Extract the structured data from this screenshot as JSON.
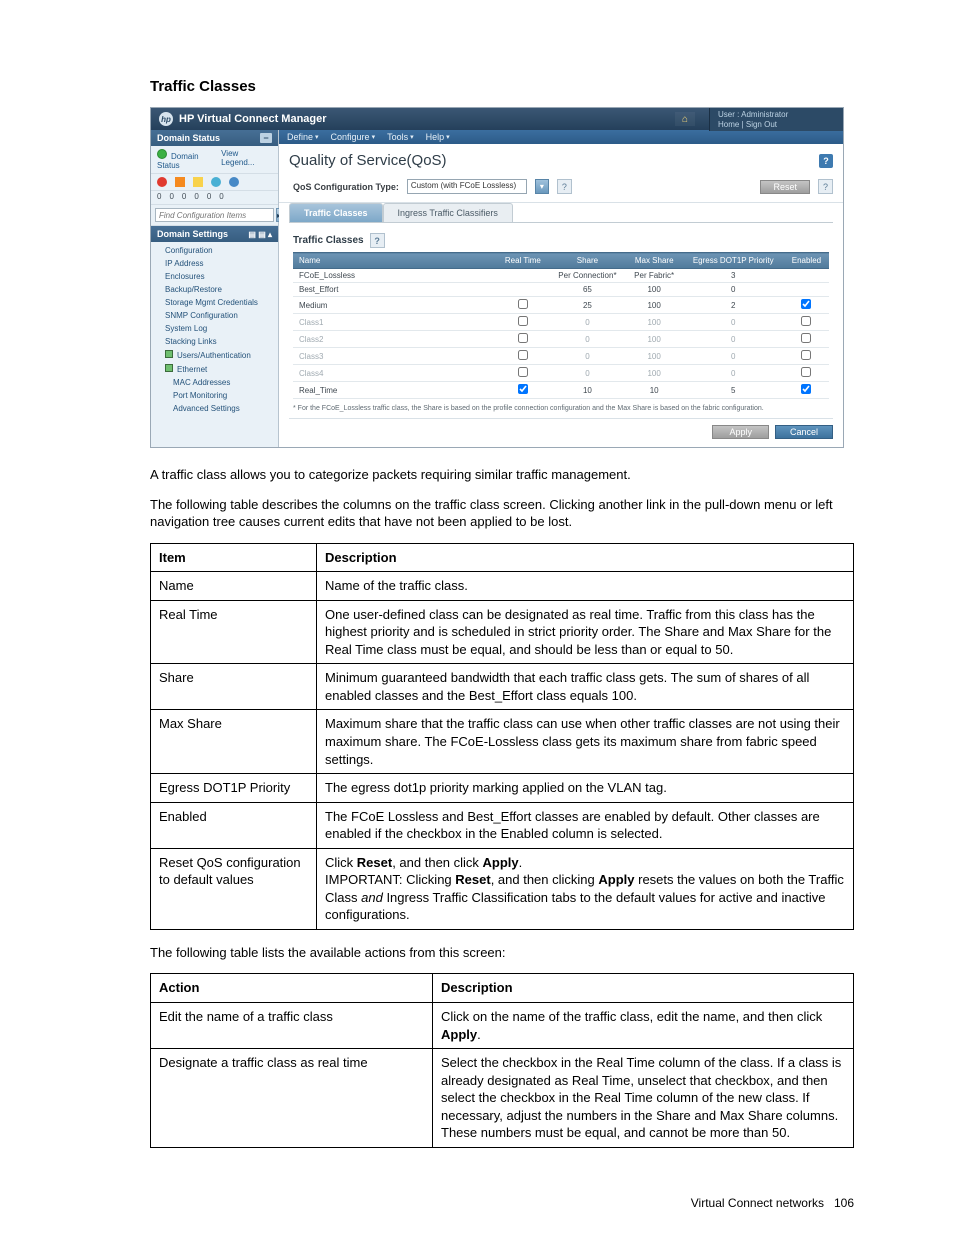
{
  "section_title": "Traffic Classes",
  "screenshot": {
    "titlebar": "HP Virtual Connect Manager",
    "userbox_line1": "User : Administrator",
    "userbox_line2": "Home | Sign Out",
    "menubar": [
      "Define",
      "Configure",
      "Tools",
      "Help"
    ],
    "left": {
      "domain_status_hdr": "Domain Status",
      "domain_status_link": "Domain Status",
      "view_legend": "View Legend...",
      "counts": [
        "0",
        "0",
        "0",
        "0",
        "0",
        "0"
      ],
      "search_placeholder": "Find Configuration Items",
      "domain_settings_hdr": "Domain Settings",
      "tree": [
        "Configuration",
        "IP Address",
        "Enclosures",
        "Backup/Restore",
        "Storage Mgmt Credentials",
        "SNMP Configuration",
        "System Log",
        "Stacking Links",
        "Users/Authentication",
        "Ethernet",
        "MAC Addresses",
        "Port Monitoring",
        "Advanced Settings"
      ]
    },
    "content": {
      "title": "Quality of Service(QoS)",
      "config_label": "QoS Configuration Type:",
      "config_value": "Custom (with FCoE Lossless)",
      "reset_label": "Reset",
      "tabs": [
        "Traffic Classes",
        "Ingress Traffic Classifiers"
      ],
      "tc_header": "Traffic Classes",
      "columns": [
        "Name",
        "Real Time",
        "Share",
        "Max Share",
        "Egress DOT1P Priority",
        "Enabled"
      ],
      "rows": [
        {
          "name": "FCoE_Lossless",
          "rt": "",
          "share": "Per Connection*",
          "max": "Per Fabric*",
          "pri": "3",
          "enabled": "locked",
          "dim": false
        },
        {
          "name": "Best_Effort",
          "rt": "",
          "share": "65",
          "max": "100",
          "pri": "0",
          "enabled": "locked",
          "dim": false
        },
        {
          "name": "Medium",
          "rt": "unchecked",
          "share": "25",
          "max": "100",
          "pri": "2",
          "enabled": "checked",
          "dim": false
        },
        {
          "name": "Class1",
          "rt": "unchecked",
          "share": "0",
          "max": "100",
          "pri": "0",
          "enabled": "unchecked",
          "dim": true
        },
        {
          "name": "Class2",
          "rt": "unchecked",
          "share": "0",
          "max": "100",
          "pri": "0",
          "enabled": "unchecked",
          "dim": true
        },
        {
          "name": "Class3",
          "rt": "unchecked",
          "share": "0",
          "max": "100",
          "pri": "0",
          "enabled": "unchecked",
          "dim": true
        },
        {
          "name": "Class4",
          "rt": "unchecked",
          "share": "0",
          "max": "100",
          "pri": "0",
          "enabled": "unchecked",
          "dim": true
        },
        {
          "name": "Real_Time",
          "rt": "checked",
          "share": "10",
          "max": "10",
          "pri": "5",
          "enabled": "checked",
          "dim": false
        }
      ],
      "footnote": "* For the FCoE_Lossless traffic class, the Share is based on the profile connection configuration and the Max Share is based on the fabric configuration.",
      "apply_label": "Apply",
      "cancel_label": "Cancel"
    }
  },
  "para1": "A traffic class allows you to categorize packets requiring similar traffic management.",
  "para2": "The following table describes the columns on the traffic class screen. Clicking another link in the pull-down menu or left navigation tree causes current edits that have not been applied to be lost.",
  "table1": {
    "h1": "Item",
    "h2": "Description",
    "rows": [
      {
        "item": "Name",
        "desc": "Name of the traffic class."
      },
      {
        "item": "Real Time",
        "desc": "One user-defined class can be designated as real time. Traffic from this class has the highest priority and is scheduled in strict priority order. The Share and Max Share for the Real Time class must be equal, and should be less than or equal to 50."
      },
      {
        "item": "Share",
        "desc": "Minimum guaranteed bandwidth that each traffic class gets. The sum of shares of all enabled classes and the Best_Effort class equals 100."
      },
      {
        "item": "Max Share",
        "desc": "Maximum share that the traffic class can use when other traffic classes are not using their maximum share. The FCoE-Lossless class gets its maximum share from fabric speed settings."
      },
      {
        "item": "Egress DOT1P Priority",
        "desc": "The egress dot1p priority marking applied on the VLAN tag."
      },
      {
        "item": "Enabled",
        "desc": "The FCoE Lossless and Best_Effort classes are enabled by default. Other classes are enabled if the checkbox in the Enabled column is selected."
      }
    ],
    "reset_item": "Reset QoS configuration to default values",
    "reset_desc_pre": "Click ",
    "reset_desc_btn1": "Reset",
    "reset_desc_mid": ", and then click ",
    "reset_desc_btn2": "Apply",
    "reset_desc_post": ".",
    "reset_desc_imp_pre": "IMPORTANT: Clicking ",
    "reset_desc_imp_b1": "Reset",
    "reset_desc_imp_mid": ", and then clicking ",
    "reset_desc_imp_b2": "Apply",
    "reset_desc_imp_after": " resets the values on both the Traffic Class ",
    "reset_desc_imp_and": "and",
    "reset_desc_imp_tail": " Ingress Traffic Classification tabs to the default values for active and inactive configurations."
  },
  "para3": "The following table lists the available actions from this screen:",
  "table2": {
    "h1": "Action",
    "h2": "Description",
    "rows": [
      {
        "action": "Edit the name of a traffic class",
        "desc_pre": "Click on the name of the traffic class, edit the name, and then click ",
        "apply": "Apply",
        "desc_post": "."
      },
      {
        "action": "Designate a traffic class as real time",
        "desc": "Select the checkbox in the Real Time column of the class. If a class is already designated as Real Time, unselect that checkbox, and then select the checkbox in the Real Time column of the new class. If necessary, adjust the numbers in the Share and Max Share columns. These numbers must be equal, and cannot be more than 50."
      }
    ]
  },
  "footer": {
    "label": "Virtual Connect networks",
    "page": "106"
  },
  "colors": {
    "header_bg": "#3b5774",
    "accent": "#3e7ab0",
    "text": "#000000"
  }
}
